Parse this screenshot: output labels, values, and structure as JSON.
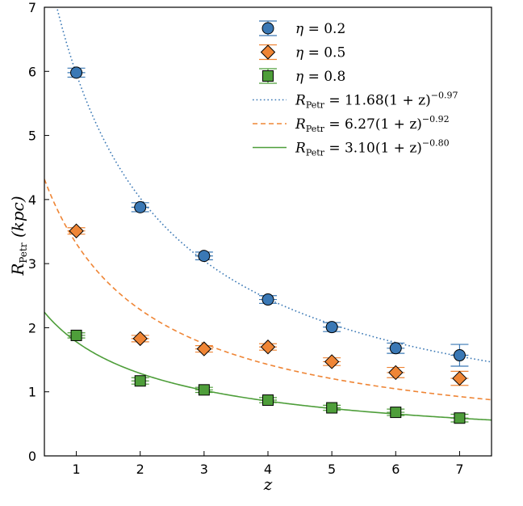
{
  "chart_data": {
    "type": "scatter",
    "title": "",
    "xlabel": "z",
    "ylabel": "R_Petr (kpc)",
    "ylabel_parts": {
      "main": "R",
      "sub": "Petr",
      "unit": "(kpc)"
    },
    "xlim": [
      0.5,
      7.5
    ],
    "ylim": [
      0,
      7
    ],
    "xticks": [
      1,
      2,
      3,
      4,
      5,
      6,
      7
    ],
    "yticks": [
      0,
      1,
      2,
      3,
      4,
      5,
      6,
      7
    ],
    "legend_position": "top-right",
    "series": [
      {
        "name": "η = 0.2",
        "label_symbol": "η",
        "label_value": "= 0.2",
        "marker": "circle",
        "color": "#3a78b5",
        "x": [
          1,
          2,
          3,
          4,
          5,
          6,
          7
        ],
        "y": [
          5.98,
          3.88,
          3.12,
          2.44,
          2.01,
          1.68,
          1.57
        ],
        "yerr": [
          0.07,
          0.07,
          0.06,
          0.06,
          0.07,
          0.08,
          0.17
        ]
      },
      {
        "name": "η = 0.5",
        "label_symbol": "η",
        "label_value": "= 0.5",
        "marker": "diamond",
        "color": "#ef8535",
        "x": [
          1,
          2,
          3,
          4,
          5,
          6,
          7
        ],
        "y": [
          3.51,
          1.83,
          1.67,
          1.7,
          1.47,
          1.3,
          1.21
        ],
        "yerr": [
          0.05,
          0.05,
          0.05,
          0.05,
          0.06,
          0.08,
          0.11
        ]
      },
      {
        "name": "η = 0.8",
        "label_symbol": "η",
        "label_value": "= 0.8",
        "marker": "square",
        "color": "#4e9e3a",
        "x": [
          1,
          2,
          3,
          4,
          5,
          6,
          7
        ],
        "y": [
          1.88,
          1.17,
          1.03,
          0.87,
          0.75,
          0.68,
          0.59
        ],
        "yerr": [
          0.04,
          0.05,
          0.04,
          0.04,
          0.04,
          0.05,
          0.06
        ]
      }
    ],
    "fits": [
      {
        "label_prefix": "R",
        "label_sub": "Petr",
        "label_eq": " = 11.68(1 + z)",
        "label_exp": "−0.97",
        "A": 11.68,
        "k": -0.97,
        "style": "dotted",
        "color": "#3a78b5"
      },
      {
        "label_prefix": "R",
        "label_sub": "Petr",
        "label_eq": " = 6.27(1 + z)",
        "label_exp": "−0.92",
        "A": 6.27,
        "k": -0.92,
        "style": "dashed",
        "color": "#ef8535"
      },
      {
        "label_prefix": "R",
        "label_sub": "Petr",
        "label_eq": " = 3.10(1 + z)",
        "label_exp": "−0.80",
        "A": 3.1,
        "k": -0.8,
        "style": "solid",
        "color": "#4e9e3a"
      }
    ]
  }
}
